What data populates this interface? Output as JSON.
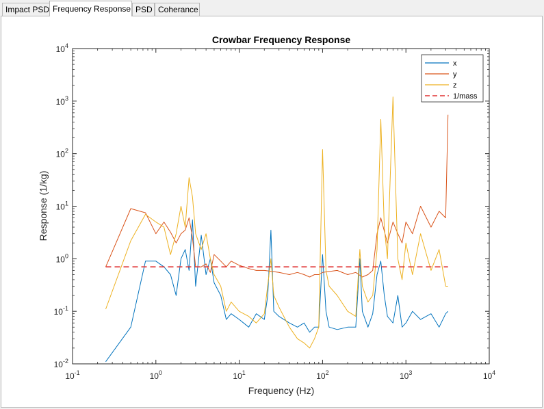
{
  "tabs": [
    {
      "label": "Impact PSD",
      "active": false
    },
    {
      "label": "Frequency Response",
      "active": true
    },
    {
      "label": "PSD",
      "active": false
    },
    {
      "label": "Coherance",
      "active": false
    }
  ],
  "chart_data": {
    "type": "line",
    "title": "Crowbar Frequency Response",
    "xlabel": "Frequency (Hz)",
    "ylabel": "Response (1/kg)",
    "xscale": "log",
    "yscale": "log",
    "xlim": [
      0.1,
      10000
    ],
    "ylim": [
      0.01,
      10000
    ],
    "x_ticks": [
      {
        "value": 0.1,
        "base": "10",
        "exp": "-1"
      },
      {
        "value": 1,
        "base": "10",
        "exp": "0"
      },
      {
        "value": 10,
        "base": "10",
        "exp": "1"
      },
      {
        "value": 100,
        "base": "10",
        "exp": "2"
      },
      {
        "value": 1000,
        "base": "10",
        "exp": "3"
      },
      {
        "value": 10000,
        "base": "10",
        "exp": "4"
      }
    ],
    "y_ticks": [
      {
        "value": 0.01,
        "base": "10",
        "exp": "-2"
      },
      {
        "value": 0.1,
        "base": "10",
        "exp": "-1"
      },
      {
        "value": 1,
        "base": "10",
        "exp": "0"
      },
      {
        "value": 10,
        "base": "10",
        "exp": "1"
      },
      {
        "value": 100,
        "base": "10",
        "exp": "2"
      },
      {
        "value": 1000,
        "base": "10",
        "exp": "3"
      },
      {
        "value": 10000,
        "base": "10",
        "exp": "4"
      }
    ],
    "grid": false,
    "legend_position": "top-right",
    "series": [
      {
        "name": "x",
        "color": "#0072BD",
        "style": "solid",
        "points": [
          [
            0.25,
            0.011
          ],
          [
            0.5,
            0.05
          ],
          [
            0.75,
            0.9
          ],
          [
            1.0,
            0.9
          ],
          [
            1.25,
            0.7
          ],
          [
            1.5,
            0.5
          ],
          [
            1.75,
            0.2
          ],
          [
            2.0,
            1.0
          ],
          [
            2.25,
            1.5
          ],
          [
            2.5,
            0.6
          ],
          [
            2.75,
            5.5
          ],
          [
            3.0,
            0.3
          ],
          [
            3.5,
            2.8
          ],
          [
            4.0,
            0.5
          ],
          [
            4.5,
            1.0
          ],
          [
            5.0,
            0.35
          ],
          [
            6.0,
            0.2
          ],
          [
            7.0,
            0.07
          ],
          [
            8.0,
            0.09
          ],
          [
            10,
            0.07
          ],
          [
            13,
            0.05
          ],
          [
            16,
            0.09
          ],
          [
            20,
            0.07
          ],
          [
            22,
            0.2
          ],
          [
            24,
            3.5
          ],
          [
            26,
            0.1
          ],
          [
            30,
            0.08
          ],
          [
            40,
            0.06
          ],
          [
            50,
            0.05
          ],
          [
            60,
            0.06
          ],
          [
            70,
            0.04
          ],
          [
            80,
            0.05
          ],
          [
            90,
            0.05
          ],
          [
            100,
            1.2
          ],
          [
            110,
            0.1
          ],
          [
            120,
            0.05
          ],
          [
            150,
            0.045
          ],
          [
            200,
            0.05
          ],
          [
            250,
            0.05
          ],
          [
            280,
            1.0
          ],
          [
            300,
            0.1
          ],
          [
            350,
            0.05
          ],
          [
            400,
            0.09
          ],
          [
            450,
            0.5
          ],
          [
            500,
            0.9
          ],
          [
            550,
            0.2
          ],
          [
            600,
            0.08
          ],
          [
            700,
            0.06
          ],
          [
            800,
            0.2
          ],
          [
            900,
            0.05
          ],
          [
            1000,
            0.06
          ],
          [
            1200,
            0.1
          ],
          [
            1500,
            0.07
          ],
          [
            2000,
            0.09
          ],
          [
            2500,
            0.05
          ],
          [
            3000,
            0.09
          ],
          [
            3200,
            0.1
          ]
        ]
      },
      {
        "name": "y",
        "color": "#D95319",
        "style": "solid",
        "points": [
          [
            0.25,
            0.7
          ],
          [
            0.5,
            9.0
          ],
          [
            0.75,
            7.5
          ],
          [
            1.0,
            3.0
          ],
          [
            1.25,
            5.0
          ],
          [
            1.5,
            3.2
          ],
          [
            1.75,
            2.0
          ],
          [
            2.0,
            3.0
          ],
          [
            2.25,
            3.5
          ],
          [
            2.5,
            6.0
          ],
          [
            2.75,
            2.5
          ],
          [
            3.0,
            0.7
          ],
          [
            3.5,
            0.7
          ],
          [
            4.0,
            0.8
          ],
          [
            4.5,
            0.55
          ],
          [
            5.0,
            1.2
          ],
          [
            6.0,
            0.9
          ],
          [
            7.0,
            0.7
          ],
          [
            8.0,
            0.9
          ],
          [
            10,
            0.75
          ],
          [
            13,
            0.65
          ],
          [
            16,
            0.6
          ],
          [
            20,
            0.6
          ],
          [
            30,
            0.55
          ],
          [
            40,
            0.5
          ],
          [
            50,
            0.55
          ],
          [
            60,
            0.5
          ],
          [
            70,
            0.45
          ],
          [
            80,
            0.5
          ],
          [
            90,
            0.5
          ],
          [
            100,
            0.55
          ],
          [
            150,
            0.6
          ],
          [
            200,
            0.5
          ],
          [
            250,
            0.55
          ],
          [
            300,
            0.45
          ],
          [
            350,
            0.5
          ],
          [
            400,
            0.6
          ],
          [
            450,
            3.0
          ],
          [
            500,
            6.0
          ],
          [
            600,
            2.0
          ],
          [
            700,
            5.0
          ],
          [
            800,
            3.0
          ],
          [
            900,
            2.0
          ],
          [
            1000,
            5.0
          ],
          [
            1200,
            3.0
          ],
          [
            1500,
            10.0
          ],
          [
            2000,
            4.0
          ],
          [
            2500,
            8.0
          ],
          [
            3000,
            6.0
          ],
          [
            3200,
            550.0
          ]
        ]
      },
      {
        "name": "z",
        "color": "#EDB120",
        "style": "solid",
        "points": [
          [
            0.25,
            0.11
          ],
          [
            0.5,
            2.2
          ],
          [
            0.75,
            7.0
          ],
          [
            1.0,
            5.0
          ],
          [
            1.25,
            4.0
          ],
          [
            1.5,
            1.2
          ],
          [
            1.75,
            3.0
          ],
          [
            2.0,
            10.0
          ],
          [
            2.25,
            4.0
          ],
          [
            2.5,
            35.0
          ],
          [
            2.75,
            15.0
          ],
          [
            3.0,
            3.0
          ],
          [
            3.5,
            1.5
          ],
          [
            4.0,
            3.0
          ],
          [
            4.5,
            1.0
          ],
          [
            5.0,
            0.5
          ],
          [
            6.0,
            0.3
          ],
          [
            7.0,
            0.1
          ],
          [
            8.0,
            0.15
          ],
          [
            10,
            0.1
          ],
          [
            13,
            0.08
          ],
          [
            16,
            0.06
          ],
          [
            20,
            0.09
          ],
          [
            24,
            1.0
          ],
          [
            26,
            0.2
          ],
          [
            30,
            0.12
          ],
          [
            40,
            0.05
          ],
          [
            50,
            0.03
          ],
          [
            60,
            0.025
          ],
          [
            70,
            0.02
          ],
          [
            80,
            0.03
          ],
          [
            90,
            0.05
          ],
          [
            100,
            120.0
          ],
          [
            110,
            0.6
          ],
          [
            120,
            0.3
          ],
          [
            150,
            0.2
          ],
          [
            200,
            0.1
          ],
          [
            250,
            0.08
          ],
          [
            280,
            1.5
          ],
          [
            300,
            0.3
          ],
          [
            350,
            0.15
          ],
          [
            400,
            0.2
          ],
          [
            450,
            1.5
          ],
          [
            500,
            450.0
          ],
          [
            550,
            4.0
          ],
          [
            600,
            1.0
          ],
          [
            700,
            1200.0
          ],
          [
            800,
            1.0
          ],
          [
            900,
            0.4
          ],
          [
            1000,
            2.0
          ],
          [
            1200,
            0.5
          ],
          [
            1500,
            3.0
          ],
          [
            2000,
            0.6
          ],
          [
            2500,
            1.5
          ],
          [
            3000,
            0.3
          ],
          [
            3200,
            0.3
          ]
        ]
      },
      {
        "name": "1/mass",
        "color": "#E03232",
        "style": "dashed",
        "points": [
          [
            0.25,
            0.7
          ],
          [
            3200,
            0.7
          ]
        ]
      }
    ]
  }
}
